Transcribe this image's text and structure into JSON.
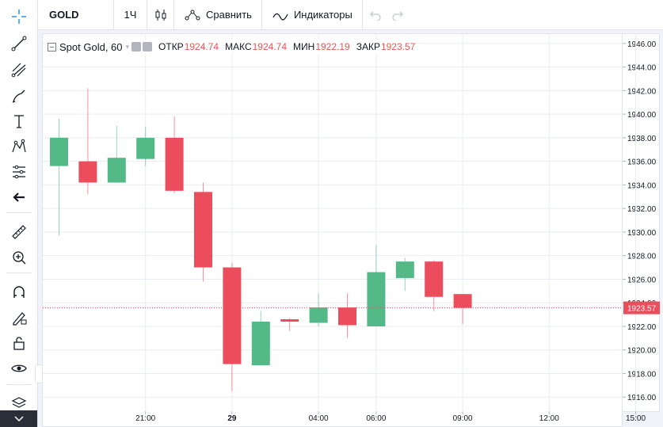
{
  "header": {
    "symbol": "GOLD",
    "interval": "1Ч",
    "compare_label": "Сравнить",
    "indicators_label": "Индикаторы"
  },
  "legend": {
    "title": "Spot Gold, 60",
    "open_label": "ОТКР",
    "open_value": "1924.74",
    "high_label": "МАКС",
    "high_value": "1924.74",
    "low_label": "МИН",
    "low_value": "1922.19",
    "close_label": "ЗАКР",
    "close_value": "1923.57"
  },
  "colors": {
    "up": "#26a69a",
    "up_fill": "#53b987",
    "down": "#eb4d5c",
    "grid": "#e9ecf2",
    "last_price_line": "#eb4d5c"
  },
  "chart_data": {
    "type": "candlestick",
    "ylim": [
      1914.5,
      1946.8
    ],
    "y_ticks": [
      "1916.00",
      "1918.00",
      "1920.00",
      "1922.00",
      "1924.00",
      "1926.00",
      "1928.00",
      "1930.00",
      "1932.00",
      "1934.00",
      "1936.00",
      "1938.00",
      "1940.00",
      "1942.00",
      "1944.00",
      "1946.00"
    ],
    "x_ticks": [
      {
        "label": "21:00",
        "x": 3
      },
      {
        "label": "29",
        "x": 6
      },
      {
        "label": "04:00",
        "x": 9
      },
      {
        "label": "06:00",
        "x": 11
      },
      {
        "label": "09:00",
        "x": 14
      },
      {
        "label": "12:00",
        "x": 17
      },
      {
        "label": "15:00",
        "x": 20
      }
    ],
    "last_price": "1923.57",
    "candles": [
      {
        "x": 0,
        "open": 1935.6,
        "high": 1939.6,
        "low": 1929.7,
        "close": 1938.0
      },
      {
        "x": 1,
        "open": 1936.0,
        "high": 1942.2,
        "low": 1933.2,
        "close": 1934.2
      },
      {
        "x": 2,
        "open": 1934.2,
        "high": 1939.0,
        "low": 1934.2,
        "close": 1936.3
      },
      {
        "x": 3,
        "open": 1936.2,
        "high": 1938.9,
        "low": 1935.6,
        "close": 1938.0
      },
      {
        "x": 4,
        "open": 1938.0,
        "high": 1939.8,
        "low": 1933.3,
        "close": 1933.5
      },
      {
        "x": 5,
        "open": 1933.4,
        "high": 1934.2,
        "low": 1925.8,
        "close": 1927.0
      },
      {
        "x": 6,
        "open": 1927.0,
        "high": 1927.4,
        "low": 1916.5,
        "close": 1918.8
      },
      {
        "x": 7,
        "open": 1918.7,
        "high": 1923.3,
        "low": 1918.7,
        "close": 1922.4
      },
      {
        "x": 8,
        "open": 1922.6,
        "high": 1922.7,
        "low": 1921.6,
        "close": 1922.4
      },
      {
        "x": 9,
        "open": 1922.3,
        "high": 1924.8,
        "low": 1922.0,
        "close": 1923.6
      },
      {
        "x": 10,
        "open": 1923.6,
        "high": 1924.8,
        "low": 1921.0,
        "close": 1922.1
      },
      {
        "x": 11,
        "open": 1922.0,
        "high": 1928.9,
        "low": 1922.0,
        "close": 1926.6
      },
      {
        "x": 12,
        "open": 1926.1,
        "high": 1927.8,
        "low": 1925.0,
        "close": 1927.5
      },
      {
        "x": 13,
        "open": 1927.5,
        "high": 1927.6,
        "low": 1923.3,
        "close": 1924.5
      },
      {
        "x": 14,
        "open": 1924.74,
        "high": 1924.74,
        "low": 1922.19,
        "close": 1923.57
      }
    ]
  }
}
